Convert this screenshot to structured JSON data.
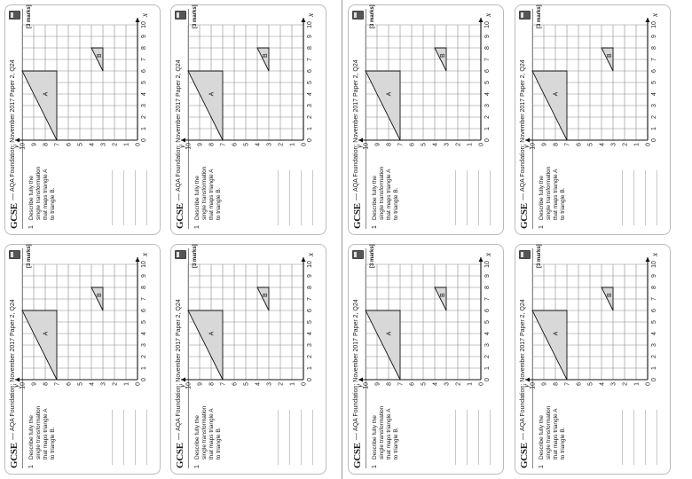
{
  "worksheet": {
    "brand": "GCSE",
    "dash": "—",
    "source": "AQA Foundation: November 2017 Paper 2, Q24",
    "question_number": "1",
    "question_text": "Describe fully the single transformation that maps triangle A to triangle B.",
    "marks": "[3 marks]",
    "axis_x_label": "x",
    "axis_y_label": "y",
    "x_ticks": [
      "0",
      "1",
      "2",
      "3",
      "4",
      "5",
      "6",
      "7",
      "8",
      "9",
      "10"
    ],
    "y_ticks": [
      "0",
      "1",
      "2",
      "3",
      "4",
      "5",
      "6",
      "7",
      "8",
      "9",
      "10"
    ],
    "triangle_a_label": "A",
    "triangle_b_label": "B",
    "card_count": 8
  },
  "grid": {
    "x_range": [
      0,
      10
    ],
    "y_range": [
      0,
      10
    ],
    "triangle_a": [
      [
        0,
        7
      ],
      [
        6,
        7
      ],
      [
        6,
        10
      ]
    ],
    "triangle_b": [
      [
        8,
        3
      ],
      [
        8,
        4
      ],
      [
        6,
        3
      ]
    ]
  },
  "colors": {
    "border": "#bbbbbb",
    "grid_line": "#8a8a8a",
    "shape_fill": "#d8d8d8",
    "ink": "#1a1a1a"
  }
}
